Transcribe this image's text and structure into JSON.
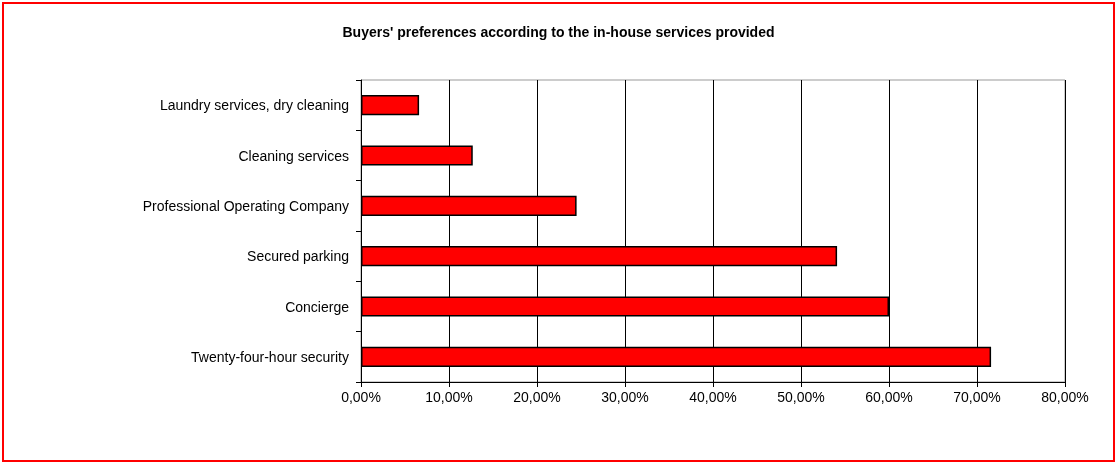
{
  "chart_data": {
    "type": "bar",
    "orientation": "horizontal",
    "title": "Buyers' preferences according to the in-house services provided",
    "categories": [
      "Laundry services, dry cleaning",
      "Cleaning services",
      "Professional Operating Company",
      "Secured parking",
      "Concierge",
      "Twenty-four-hour security"
    ],
    "values": [
      6.6,
      12.7,
      24.5,
      54.1,
      60.0,
      71.6
    ],
    "color": "#ff0000",
    "xlim": [
      0,
      80
    ],
    "xticks": [
      {
        "value": 0,
        "label": "0,00%"
      },
      {
        "value": 10,
        "label": "10,00%"
      },
      {
        "value": 20,
        "label": "20,00%"
      },
      {
        "value": 30,
        "label": "30,00%"
      },
      {
        "value": 40,
        "label": "40,00%"
      },
      {
        "value": 50,
        "label": "50,00%"
      },
      {
        "value": 60,
        "label": "60,00%"
      },
      {
        "value": 70,
        "label": "70,00%"
      },
      {
        "value": 80,
        "label": "80,00%"
      }
    ],
    "grid": "x"
  }
}
